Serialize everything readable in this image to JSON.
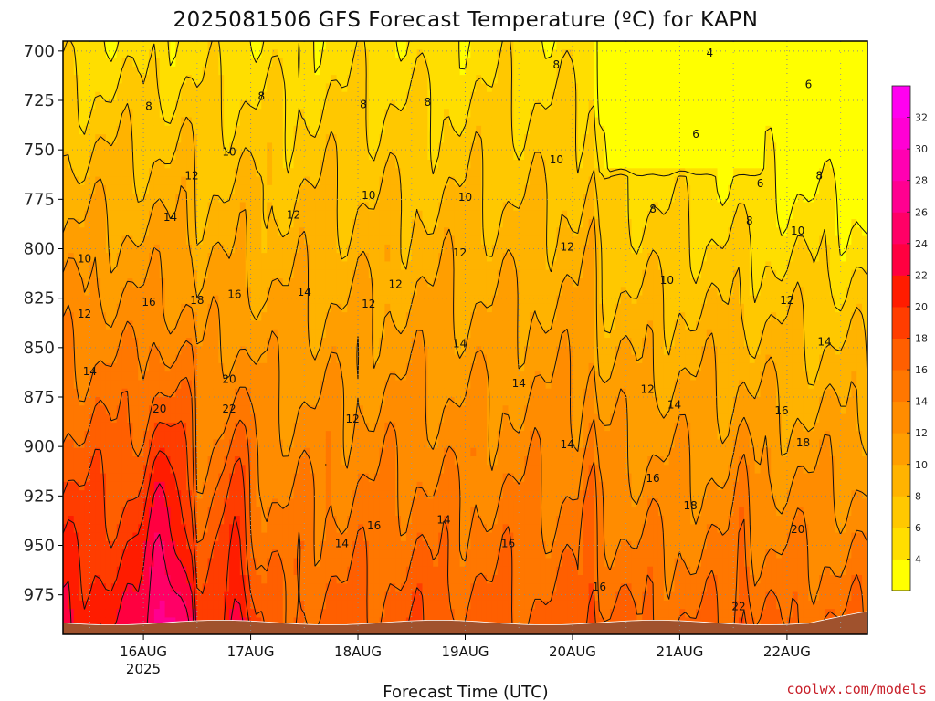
{
  "chart_data": {
    "type": "heatmap",
    "title": "2025081506 GFS Forecast Temperature (ºC) for KAPN",
    "xlabel": "Forecast Time (UTC)",
    "ylabel": "",
    "credit": "coolwx.com/models",
    "x_ticks": [
      "16AUG",
      "17AUG",
      "18AUG",
      "19AUG",
      "20AUG",
      "21AUG",
      "22AUG"
    ],
    "x_year": "2025",
    "x_range_days": [
      15.25,
      22.75
    ],
    "y_ticks": [
      700,
      725,
      750,
      775,
      800,
      825,
      850,
      875,
      900,
      925,
      950,
      975
    ],
    "y_range_hPa": [
      695,
      995
    ],
    "colorbar_ticks": [
      4,
      6,
      8,
      10,
      12,
      14,
      16,
      18,
      20,
      22,
      24,
      26,
      28,
      30,
      32
    ],
    "colorbar_levels": [
      2,
      4,
      6,
      8,
      10,
      12,
      14,
      16,
      18,
      20,
      22,
      24,
      26,
      28,
      30,
      32,
      34
    ],
    "colors": [
      "#ffff00",
      "#ffde00",
      "#ffc800",
      "#ffb300",
      "#ff9e00",
      "#ff8c00",
      "#ff7700",
      "#ff5f00",
      "#ff3d00",
      "#ff1c00",
      "#ff0040",
      "#ff0066",
      "#ff0090",
      "#ff00b2",
      "#ff00d4",
      "#ff00f0"
    ],
    "ground_color": "#a0522d",
    "grid": true,
    "contour_labels": [
      {
        "v": "4",
        "x": 21.28,
        "y": 701
      },
      {
        "v": "8",
        "x": 16.05,
        "y": 728
      },
      {
        "v": "8",
        "x": 17.1,
        "y": 723
      },
      {
        "v": "8",
        "x": 18.05,
        "y": 727
      },
      {
        "v": "8",
        "x": 18.65,
        "y": 726
      },
      {
        "v": "8",
        "x": 19.85,
        "y": 707
      },
      {
        "v": "6",
        "x": 22.2,
        "y": 717
      },
      {
        "v": "6",
        "x": 21.15,
        "y": 742
      },
      {
        "v": "6",
        "x": 21.75,
        "y": 767
      },
      {
        "v": "8",
        "x": 22.3,
        "y": 763
      },
      {
        "v": "8",
        "x": 20.75,
        "y": 780
      },
      {
        "v": "8",
        "x": 21.65,
        "y": 786
      },
      {
        "v": "10",
        "x": 16.8,
        "y": 751
      },
      {
        "v": "10",
        "x": 19.85,
        "y": 755
      },
      {
        "v": "10",
        "x": 18.1,
        "y": 773
      },
      {
        "v": "10",
        "x": 19.0,
        "y": 774
      },
      {
        "v": "10",
        "x": 22.1,
        "y": 791
      },
      {
        "v": "10",
        "x": 20.88,
        "y": 816
      },
      {
        "v": "10",
        "x": 15.45,
        "y": 805
      },
      {
        "v": "12",
        "x": 16.45,
        "y": 763
      },
      {
        "v": "12",
        "x": 17.4,
        "y": 783
      },
      {
        "v": "12",
        "x": 18.95,
        "y": 802
      },
      {
        "v": "12",
        "x": 19.95,
        "y": 799
      },
      {
        "v": "12",
        "x": 18.35,
        "y": 818
      },
      {
        "v": "12",
        "x": 18.1,
        "y": 828
      },
      {
        "v": "12",
        "x": 15.45,
        "y": 833
      },
      {
        "v": "12",
        "x": 22.0,
        "y": 826
      },
      {
        "v": "12",
        "x": 20.7,
        "y": 871
      },
      {
        "v": "12",
        "x": 17.95,
        "y": 886
      },
      {
        "v": "14",
        "x": 16.25,
        "y": 784
      },
      {
        "v": "14",
        "x": 17.5,
        "y": 822
      },
      {
        "v": "14",
        "x": 15.5,
        "y": 862
      },
      {
        "v": "14",
        "x": 18.95,
        "y": 848
      },
      {
        "v": "14",
        "x": 19.5,
        "y": 868
      },
      {
        "v": "14",
        "x": 22.35,
        "y": 847
      },
      {
        "v": "14",
        "x": 20.95,
        "y": 879
      },
      {
        "v": "14",
        "x": 19.95,
        "y": 899
      },
      {
        "v": "14",
        "x": 18.8,
        "y": 937
      },
      {
        "v": "14",
        "x": 17.85,
        "y": 949
      },
      {
        "v": "16",
        "x": 16.05,
        "y": 827
      },
      {
        "v": "16",
        "x": 16.85,
        "y": 823
      },
      {
        "v": "16",
        "x": 21.95,
        "y": 882
      },
      {
        "v": "16",
        "x": 20.75,
        "y": 916
      },
      {
        "v": "16",
        "x": 18.15,
        "y": 940
      },
      {
        "v": "16",
        "x": 19.4,
        "y": 949
      },
      {
        "v": "16",
        "x": 20.25,
        "y": 971
      },
      {
        "v": "18",
        "x": 16.5,
        "y": 826
      },
      {
        "v": "18",
        "x": 22.15,
        "y": 898
      },
      {
        "v": "18",
        "x": 21.1,
        "y": 930
      },
      {
        "v": "20",
        "x": 16.8,
        "y": 866
      },
      {
        "v": "20",
        "x": 16.15,
        "y": 881
      },
      {
        "v": "20",
        "x": 22.1,
        "y": 942
      },
      {
        "v": "22",
        "x": 16.8,
        "y": 881
      },
      {
        "v": "22",
        "x": 21.55,
        "y": 981
      }
    ]
  }
}
